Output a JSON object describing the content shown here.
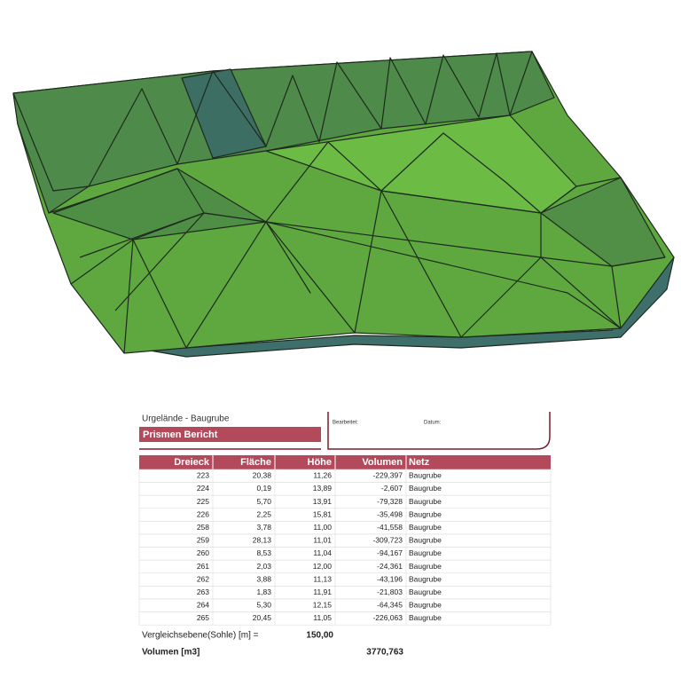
{
  "header": {
    "project": "Urgelände  - Baugrube",
    "title": "Prismen Bericht",
    "edited_label": "Bearbeitet:",
    "date_label": "Datum:"
  },
  "table": {
    "columns": [
      "Dreieck",
      "Fläche",
      "Höhe",
      "Volumen",
      "Netz"
    ],
    "rows": [
      [
        "223",
        "20,38",
        "11,26",
        "-229,397",
        "Baugrube"
      ],
      [
        "224",
        "0,19",
        "13,89",
        "-2,607",
        "Baugrube"
      ],
      [
        "225",
        "5,70",
        "13,91",
        "-79,328",
        "Baugrube"
      ],
      [
        "226",
        "2,25",
        "15,81",
        "-35,498",
        "Baugrube"
      ],
      [
        "258",
        "3,78",
        "11,00",
        "-41,558",
        "Baugrube"
      ],
      [
        "259",
        "28,13",
        "11,01",
        "-309,723",
        "Baugrube"
      ],
      [
        "260",
        "8,53",
        "11,04",
        "-94,167",
        "Baugrube"
      ],
      [
        "261",
        "2,03",
        "12,00",
        "-24,361",
        "Baugrube"
      ],
      [
        "262",
        "3,88",
        "11,13",
        "-43,196",
        "Baugrube"
      ],
      [
        "263",
        "1,83",
        "11,91",
        "-21,803",
        "Baugrube"
      ],
      [
        "264",
        "5,30",
        "12,15",
        "-64,345",
        "Baugrube"
      ],
      [
        "265",
        "20,45",
        "11,05",
        "-226,063",
        "Baugrube"
      ]
    ]
  },
  "footer": {
    "reference_label": "Vergleichsebene(Sohle) [m] =",
    "reference_value": "150,00",
    "volume_label": "Volumen [m3]",
    "volume_value": "3770,763"
  }
}
